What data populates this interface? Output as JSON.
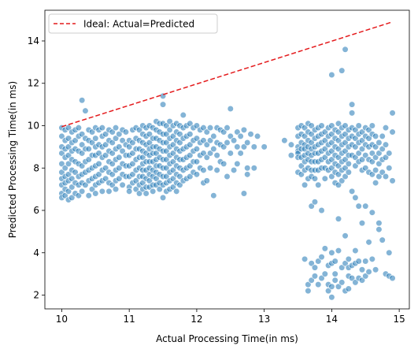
{
  "chart_data": {
    "type": "scatter",
    "xlabel": "Actual Processing Time(in ms)",
    "ylabel": "Predicted Processing Time(in ms)",
    "xlim": [
      9.75,
      15.15
    ],
    "ylim": [
      1.35,
      15.45
    ],
    "xticks": [
      10,
      11,
      12,
      13,
      14,
      15
    ],
    "yticks": [
      2,
      4,
      6,
      8,
      10,
      12,
      14
    ],
    "grid": false,
    "legend": {
      "position": "top-left",
      "entries": [
        {
          "label": "Ideal: Actual=Predicted",
          "style": "dashed-line",
          "color": "#e41a1c"
        }
      ]
    },
    "ideal_line": {
      "x": [
        10.0,
        14.9
      ],
      "y": [
        9.95,
        14.9
      ]
    },
    "point_color": "#1f77b4",
    "series": [
      {
        "style": "scatter",
        "x": [
          10.0,
          10.0,
          10.0,
          10.0,
          10.0,
          10.0,
          10.0,
          10.0,
          10.0,
          10.0,
          10.05,
          10.05,
          10.05,
          10.05,
          10.05,
          10.05,
          10.05,
          10.05,
          10.05,
          10.1,
          10.1,
          10.1,
          10.1,
          10.1,
          10.1,
          10.1,
          10.1,
          10.1,
          10.15,
          10.15,
          10.15,
          10.15,
          10.15,
          10.15,
          10.15,
          10.15,
          10.2,
          10.2,
          10.2,
          10.2,
          10.2,
          10.2,
          10.2,
          10.25,
          10.25,
          10.25,
          10.25,
          10.25,
          10.25,
          10.25,
          10.3,
          10.3,
          10.3,
          10.3,
          10.3,
          10.3,
          10.3,
          10.3,
          10.35,
          10.35,
          10.35,
          10.35,
          10.35,
          10.35,
          10.4,
          10.4,
          10.4,
          10.4,
          10.4,
          10.4,
          10.4,
          10.45,
          10.45,
          10.45,
          10.45,
          10.45,
          10.45,
          10.5,
          10.5,
          10.5,
          10.5,
          10.5,
          10.5,
          10.5,
          10.5,
          10.55,
          10.55,
          10.55,
          10.55,
          10.55,
          10.55,
          10.6,
          10.6,
          10.6,
          10.6,
          10.6,
          10.6,
          10.6,
          10.65,
          10.65,
          10.65,
          10.65,
          10.65,
          10.7,
          10.7,
          10.7,
          10.7,
          10.7,
          10.7,
          10.7,
          10.75,
          10.75,
          10.75,
          10.75,
          10.75,
          10.75,
          10.8,
          10.8,
          10.8,
          10.8,
          10.8,
          10.8,
          10.8,
          10.85,
          10.85,
          10.85,
          10.85,
          10.85,
          10.9,
          10.9,
          10.9,
          10.9,
          10.9,
          10.9,
          10.95,
          10.95,
          10.95,
          10.95,
          10.95,
          11.0,
          11.0,
          11.0,
          11.0,
          11.0,
          11.0,
          11.0,
          11.05,
          11.05,
          11.05,
          11.05,
          11.05,
          11.05,
          11.1,
          11.1,
          11.1,
          11.1,
          11.1,
          11.1,
          11.1,
          11.15,
          11.15,
          11.15,
          11.15,
          11.15,
          11.15,
          11.15,
          11.15,
          11.2,
          11.2,
          11.2,
          11.2,
          11.2,
          11.2,
          11.2,
          11.2,
          11.2,
          11.2,
          11.25,
          11.25,
          11.25,
          11.25,
          11.25,
          11.25,
          11.25,
          11.25,
          11.25,
          11.3,
          11.3,
          11.3,
          11.3,
          11.3,
          11.3,
          11.3,
          11.3,
          11.3,
          11.3,
          11.35,
          11.35,
          11.35,
          11.35,
          11.35,
          11.35,
          11.35,
          11.35,
          11.35,
          11.4,
          11.4,
          11.4,
          11.4,
          11.4,
          11.4,
          11.4,
          11.4,
          11.4,
          11.4,
          11.45,
          11.45,
          11.45,
          11.45,
          11.45,
          11.45,
          11.45,
          11.45,
          11.45,
          11.5,
          11.5,
          11.5,
          11.5,
          11.5,
          11.5,
          11.5,
          11.5,
          11.5,
          11.5,
          11.5,
          11.55,
          11.55,
          11.55,
          11.55,
          11.55,
          11.55,
          11.55,
          11.55,
          11.55,
          11.6,
          11.6,
          11.6,
          11.6,
          11.6,
          11.6,
          11.6,
          11.6,
          11.6,
          11.65,
          11.65,
          11.65,
          11.65,
          11.65,
          11.65,
          11.65,
          11.65,
          11.7,
          11.7,
          11.7,
          11.7,
          11.7,
          11.7,
          11.7,
          11.7,
          11.7,
          11.75,
          11.75,
          11.75,
          11.75,
          11.75,
          11.75,
          11.75,
          11.75,
          11.8,
          11.8,
          11.8,
          11.8,
          11.8,
          11.8,
          11.8,
          11.85,
          11.85,
          11.85,
          11.85,
          11.85,
          11.85,
          11.9,
          11.9,
          11.9,
          11.9,
          11.9,
          11.9,
          11.95,
          11.95,
          11.95,
          11.95,
          11.95,
          12.0,
          12.0,
          12.0,
          12.0,
          12.0,
          12.05,
          12.05,
          12.05,
          12.05,
          12.1,
          12.1,
          12.1,
          12.1,
          12.1,
          12.15,
          12.15,
          12.15,
          12.15,
          12.2,
          12.2,
          12.2,
          12.2,
          12.25,
          12.25,
          12.25,
          12.3,
          12.3,
          12.3,
          12.3,
          12.35,
          12.35,
          12.35,
          12.4,
          12.4,
          12.4,
          12.45,
          12.45,
          12.45,
          12.5,
          12.5,
          12.5,
          12.55,
          12.55,
          12.6,
          12.6,
          12.6,
          12.65,
          12.65,
          12.7,
          12.7,
          12.7,
          12.75,
          12.75,
          12.75,
          12.8,
          12.85,
          12.85,
          12.9,
          13.0,
          13.3,
          13.4,
          13.4,
          13.5,
          13.5,
          13.5,
          13.5,
          13.5,
          13.5,
          13.5,
          13.55,
          13.55,
          13.55,
          13.55,
          13.55,
          13.55,
          13.55,
          13.6,
          13.6,
          13.6,
          13.6,
          13.6,
          13.6,
          13.6,
          13.6,
          13.6,
          13.65,
          13.65,
          13.65,
          13.65,
          13.65,
          13.65,
          13.65,
          13.65,
          13.65,
          13.65,
          13.7,
          13.7,
          13.7,
          13.7,
          13.7,
          13.7,
          13.7,
          13.7,
          13.7,
          13.7,
          13.7,
          13.75,
          13.75,
          13.75,
          13.75,
          13.75,
          13.75,
          13.75,
          13.75,
          13.75,
          13.75,
          13.8,
          13.8,
          13.8,
          13.8,
          13.8,
          13.8,
          13.8,
          13.8,
          13.8,
          13.85,
          13.85,
          13.85,
          13.85,
          13.85,
          13.85,
          13.85,
          13.85,
          13.85,
          13.9,
          13.9,
          13.9,
          13.9,
          13.9,
          13.9,
          13.9,
          13.9,
          13.95,
          13.95,
          13.95,
          13.95,
          13.95,
          13.95,
          13.95,
          13.95,
          13.95,
          14.0,
          14.0,
          14.0,
          14.0,
          14.0,
          14.0,
          14.0,
          14.0,
          14.0,
          14.0,
          14.0,
          14.0,
          14.05,
          14.05,
          14.05,
          14.05,
          14.05,
          14.05,
          14.05,
          14.05,
          14.05,
          14.05,
          14.1,
          14.1,
          14.1,
          14.1,
          14.1,
          14.1,
          14.1,
          14.1,
          14.1,
          14.1,
          14.1,
          14.15,
          14.15,
          14.15,
          14.15,
          14.15,
          14.15,
          14.15,
          14.15,
          14.15,
          14.15,
          14.2,
          14.2,
          14.2,
          14.2,
          14.2,
          14.2,
          14.2,
          14.2,
          14.2,
          14.2,
          14.2,
          14.25,
          14.25,
          14.25,
          14.25,
          14.25,
          14.25,
          14.25,
          14.25,
          14.25,
          14.25,
          14.3,
          14.3,
          14.3,
          14.3,
          14.3,
          14.3,
          14.3,
          14.3,
          14.3,
          14.35,
          14.35,
          14.35,
          14.35,
          14.35,
          14.35,
          14.35,
          14.35,
          14.35,
          14.4,
          14.4,
          14.4,
          14.4,
          14.4,
          14.4,
          14.4,
          14.4,
          14.45,
          14.45,
          14.45,
          14.45,
          14.45,
          14.45,
          14.45,
          14.45,
          14.5,
          14.5,
          14.5,
          14.5,
          14.5,
          14.5,
          14.5,
          14.5,
          14.55,
          14.55,
          14.55,
          14.55,
          14.55,
          14.55,
          14.55,
          14.6,
          14.6,
          14.6,
          14.6,
          14.6,
          14.6,
          14.6,
          14.6,
          14.65,
          14.65,
          14.65,
          14.65,
          14.65,
          14.65,
          14.7,
          14.7,
          14.7,
          14.7,
          14.7,
          14.7,
          14.75,
          14.75,
          14.75,
          14.75,
          14.75,
          14.8,
          14.8,
          14.8,
          14.8,
          14.8,
          14.85,
          14.85,
          14.85,
          14.85,
          14.9,
          14.9,
          14.9,
          14.9
        ],
        "y": [
          9.9,
          9.5,
          9.0,
          8.7,
          8.2,
          7.8,
          7.5,
          7.2,
          6.8,
          6.6,
          9.8,
          9.3,
          8.9,
          8.5,
          8.0,
          7.6,
          7.3,
          7.0,
          6.7,
          9.9,
          9.4,
          9.0,
          8.6,
          8.2,
          7.7,
          7.4,
          6.9,
          6.5,
          9.7,
          9.2,
          8.8,
          8.4,
          7.9,
          7.5,
          7.1,
          6.6,
          9.8,
          9.3,
          8.9,
          8.3,
          7.8,
          7.3,
          6.8,
          9.9,
          9.5,
          8.8,
          8.2,
          7.6,
          7.2,
          6.7,
          11.2,
          9.6,
          9.1,
          8.7,
          8.1,
          7.7,
          7.3,
          6.9,
          10.7,
          9.4,
          8.9,
          8.3,
          7.8,
          7.2,
          9.8,
          9.3,
          8.9,
          8.4,
          7.9,
          7.4,
          6.7,
          9.7,
          9.2,
          8.6,
          8.0,
          7.5,
          7.0,
          9.9,
          9.4,
          9.0,
          8.6,
          8.1,
          7.6,
          7.2,
          6.8,
          9.8,
          9.1,
          8.7,
          8.2,
          7.7,
          7.3,
          9.9,
          9.5,
          9.0,
          8.5,
          7.9,
          7.4,
          6.9,
          9.6,
          9.1,
          8.6,
          8.0,
          7.5,
          9.8,
          9.3,
          8.8,
          8.3,
          7.8,
          7.3,
          6.9,
          9.7,
          9.2,
          8.7,
          8.2,
          7.7,
          7.2,
          9.9,
          9.4,
          8.9,
          8.4,
          7.9,
          7.4,
          7.0,
          9.6,
          9.0,
          8.5,
          8.0,
          7.5,
          9.8,
          9.3,
          8.8,
          8.2,
          7.7,
          7.2,
          9.7,
          9.1,
          8.6,
          8.1,
          7.6,
          9.3,
          9.0,
          8.6,
          8.1,
          7.6,
          7.1,
          6.9,
          9.8,
          9.2,
          8.7,
          8.2,
          7.7,
          7.3,
          9.9,
          9.4,
          8.9,
          8.4,
          7.9,
          7.4,
          7.0,
          9.8,
          9.3,
          8.9,
          8.5,
          8.0,
          7.6,
          7.2,
          6.8,
          10.0,
          9.6,
          9.2,
          8.8,
          8.5,
          8.2,
          7.9,
          7.6,
          7.3,
          7.0,
          9.9,
          9.5,
          9.1,
          8.7,
          8.3,
          7.9,
          7.5,
          7.1,
          6.8,
          10.0,
          9.6,
          9.2,
          8.9,
          8.6,
          8.3,
          8.0,
          7.7,
          7.4,
          7.1,
          9.9,
          9.4,
          9.0,
          8.7,
          8.3,
          7.9,
          7.6,
          7.2,
          6.9,
          10.2,
          9.8,
          9.4,
          9.0,
          8.7,
          8.4,
          8.1,
          7.8,
          7.5,
          7.2,
          10.1,
          9.7,
          9.3,
          8.9,
          8.5,
          8.1,
          7.7,
          7.3,
          7.0,
          11.4,
          11.0,
          10.1,
          9.6,
          9.2,
          8.8,
          8.4,
          8.0,
          7.6,
          7.2,
          6.6,
          10.0,
          9.6,
          9.2,
          8.8,
          8.4,
          8.0,
          7.6,
          7.3,
          6.9,
          10.2,
          9.8,
          9.4,
          9.0,
          8.6,
          8.2,
          7.8,
          7.4,
          7.0,
          10.0,
          9.5,
          9.1,
          8.7,
          8.3,
          7.9,
          7.5,
          7.1,
          10.1,
          9.7,
          9.3,
          8.9,
          8.5,
          8.1,
          7.7,
          7.3,
          6.9,
          10.0,
          9.6,
          9.2,
          8.8,
          8.4,
          8.0,
          7.6,
          7.2,
          10.5,
          9.9,
          9.4,
          8.9,
          8.4,
          7.9,
          7.4,
          10.0,
          9.5,
          9.0,
          8.5,
          8.0,
          7.5,
          10.1,
          9.6,
          9.1,
          8.6,
          8.1,
          7.6,
          9.9,
          9.3,
          8.8,
          8.3,
          7.8,
          10.0,
          9.4,
          8.9,
          8.3,
          7.7,
          9.8,
          9.2,
          8.6,
          8.0,
          9.9,
          9.3,
          8.7,
          7.9,
          7.3,
          9.7,
          9.1,
          8.5,
          7.4,
          9.9,
          9.3,
          8.7,
          8.0,
          9.5,
          8.9,
          6.7,
          9.9,
          9.2,
          8.6,
          7.9,
          9.8,
          9.1,
          8.3,
          9.7,
          9.0,
          8.2,
          9.9,
          9.2,
          7.6,
          10.8,
          9.5,
          8.7,
          9.3,
          7.9,
          9.7,
          9.0,
          8.2,
          9.5,
          8.7,
          9.8,
          9.0,
          6.8,
          9.2,
          8.0,
          7.7,
          9.6,
          9.0,
          8.0,
          9.5,
          9.0,
          9.3,
          8.6,
          9.1,
          9.9,
          9.5,
          9.0,
          8.8,
          8.7,
          8.5,
          7.8,
          10.0,
          9.6,
          9.2,
          8.9,
          8.5,
          8.1,
          7.7,
          9.9,
          9.5,
          9.1,
          8.9,
          8.6,
          8.3,
          7.9,
          7.2,
          3.7,
          10.1,
          9.7,
          9.3,
          9.0,
          8.7,
          8.4,
          8.0,
          7.5,
          2.5,
          2.2,
          10.0,
          9.6,
          9.2,
          8.9,
          8.6,
          8.3,
          7.9,
          7.6,
          6.2,
          3.5,
          2.7,
          9.8,
          9.4,
          9.0,
          8.7,
          8.3,
          7.9,
          7.5,
          6.4,
          3.3,
          2.9,
          9.9,
          9.5,
          9.1,
          8.7,
          8.3,
          7.9,
          7.2,
          3.6,
          2.5,
          10.0,
          9.6,
          9.2,
          8.8,
          8.4,
          8.0,
          6.0,
          3.8,
          2.8,
          9.7,
          9.3,
          8.9,
          8.5,
          8.0,
          7.5,
          4.2,
          3.0,
          9.9,
          9.5,
          9.1,
          8.7,
          8.3,
          7.9,
          3.4,
          2.5,
          2.2,
          12.4,
          10.0,
          9.6,
          9.2,
          8.8,
          8.4,
          8.0,
          7.6,
          4.0,
          3.5,
          2.4,
          1.9,
          9.8,
          9.4,
          9.0,
          8.6,
          8.2,
          7.8,
          7.3,
          3.6,
          3.0,
          2.7,
          5.6,
          10.1,
          9.7,
          9.3,
          8.9,
          8.5,
          8.1,
          7.7,
          7.2,
          4.1,
          2.4,
          12.6,
          9.9,
          9.5,
          9.1,
          8.7,
          8.3,
          7.9,
          7.4,
          3.3,
          2.6,
          13.6,
          10.0,
          9.6,
          9.2,
          8.8,
          8.4,
          8.0,
          7.6,
          4.8,
          3.5,
          2.2,
          9.8,
          9.4,
          9.0,
          8.6,
          8.2,
          7.8,
          3.7,
          3.3,
          2.9,
          2.3,
          11.0,
          10.6,
          9.9,
          9.5,
          9.1,
          8.6,
          6.9,
          3.4,
          2.8,
          9.8,
          9.4,
          9.0,
          8.5,
          8.1,
          6.6,
          4.1,
          3.5,
          2.6,
          10.0,
          9.6,
          9.2,
          8.7,
          8.3,
          6.2,
          3.6,
          2.8,
          9.7,
          9.3,
          8.9,
          8.4,
          7.9,
          5.4,
          3.2,
          2.7,
          9.9,
          9.5,
          9.1,
          8.6,
          8.0,
          6.2,
          3.6,
          2.9,
          9.8,
          9.4,
          9.0,
          8.4,
          7.8,
          4.5,
          3.1,
          10.0,
          9.6,
          9.1,
          8.7,
          8.3,
          7.7,
          5.9,
          3.7,
          9.5,
          9.0,
          8.5,
          7.9,
          7.3,
          3.2,
          9.2,
          8.7,
          8.2,
          7.6,
          5.4,
          5.1,
          9.5,
          8.9,
          8.4,
          7.8,
          4.6,
          9.9,
          9.1,
          8.5,
          7.6,
          3.0,
          8.7,
          8.0,
          4.0,
          2.9,
          10.6,
          9.7,
          7.4,
          2.8
        ]
      }
    ]
  }
}
